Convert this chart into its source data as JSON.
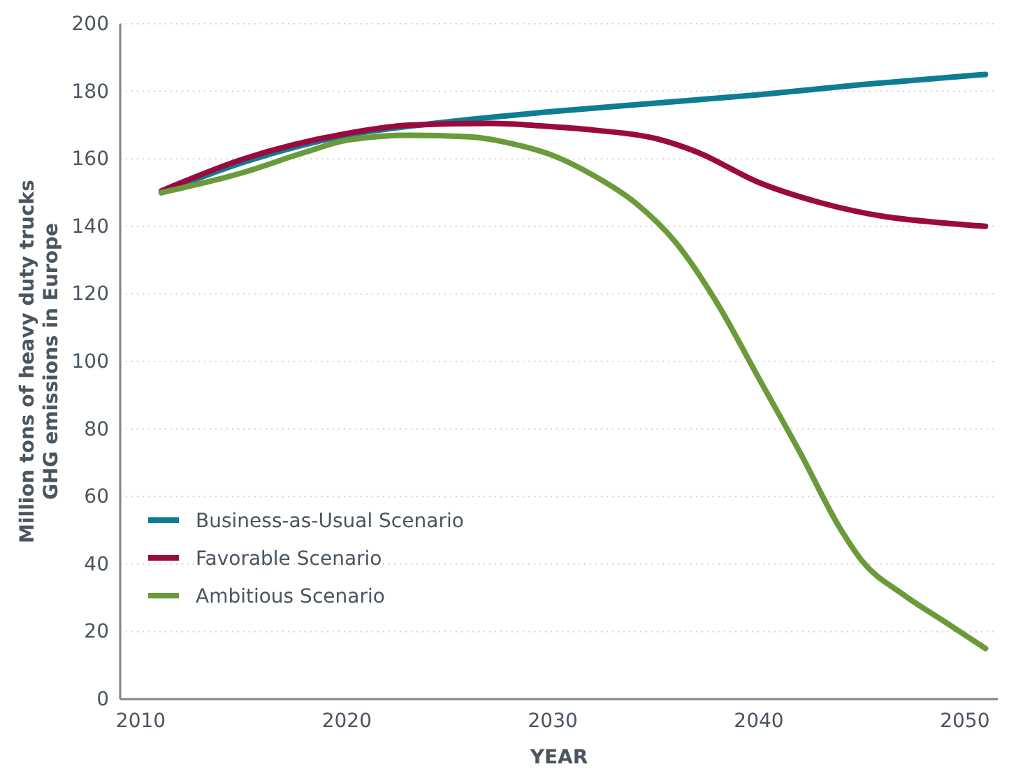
{
  "chart_data": {
    "type": "line",
    "xlabel": "YEAR",
    "ylabel": "Million tons of heavy duty trucks\nGHG emissions in Europe",
    "xlim": [
      2009,
      2051.6
    ],
    "xticks": [
      2010,
      2020,
      2030,
      2040,
      2050
    ],
    "ylim": [
      0,
      200
    ],
    "yticks": [
      0,
      20,
      40,
      60,
      80,
      100,
      120,
      140,
      160,
      180,
      200
    ],
    "grid": "y",
    "legend": "bottom left",
    "line_style": "solid",
    "marker": "none",
    "series": [
      {
        "name": "Business-as-Usual Scenario",
        "color": "#0e7d93",
        "x": [
          2011,
          2015,
          2020,
          2025,
          2030,
          2035,
          2040,
          2045,
          2051
        ],
        "values": [
          150,
          159,
          167,
          171,
          174,
          176.5,
          179,
          182,
          185
        ]
      },
      {
        "name": "Favorable Scenario",
        "color": "#9b0a3e",
        "x": [
          2011,
          2015,
          2020,
          2023,
          2027,
          2030,
          2032,
          2035,
          2037,
          2040,
          2043,
          2046,
          2049,
          2051
        ],
        "values": [
          150.5,
          160,
          167.5,
          170,
          170.5,
          169.5,
          168.5,
          166,
          162,
          153,
          147,
          143,
          141,
          140
        ]
      },
      {
        "name": "Ambitious Scenario",
        "color": "#6b9a3a",
        "x": [
          2011,
          2015,
          2018,
          2020,
          2023,
          2026,
          2028,
          2030,
          2032,
          2034,
          2036,
          2038,
          2040,
          2042,
          2044,
          2045,
          2047,
          2049,
          2051
        ],
        "values": [
          150,
          156,
          162,
          165.5,
          167,
          166.5,
          164.5,
          161,
          155,
          147,
          135,
          117,
          95,
          73,
          50,
          41,
          31,
          23,
          15
        ]
      }
    ]
  }
}
